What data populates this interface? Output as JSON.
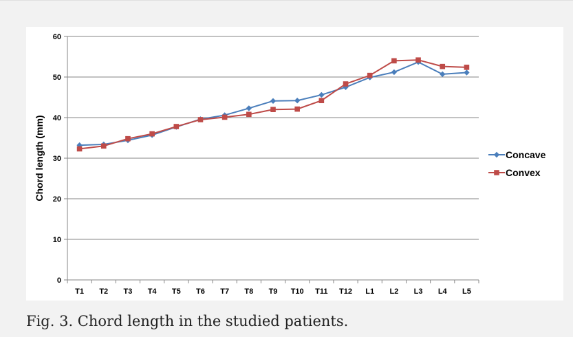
{
  "caption": "Fig. 3. Chord length in the studied patients.",
  "colors": {
    "concave": "#4a7ebb",
    "convex": "#be4b48",
    "grid": "#868686",
    "axis": "#868686",
    "text": "#000000"
  },
  "chart_data": {
    "type": "line",
    "title": "",
    "xlabel": "",
    "ylabel": "Chord length (mm)",
    "ylim": [
      0,
      60
    ],
    "yticks": [
      0,
      10,
      20,
      30,
      40,
      50,
      60
    ],
    "grid": true,
    "legend_position": "right",
    "categories": [
      "T1",
      "T2",
      "T3",
      "T4",
      "T5",
      "T6",
      "T7",
      "T8",
      "T9",
      "T10",
      "T11",
      "T12",
      "L1",
      "L2",
      "L3",
      "L4",
      "L5"
    ],
    "series": [
      {
        "name": "Concave",
        "marker": "diamond",
        "color": "#4a7ebb",
        "values": [
          33.2,
          33.4,
          34.4,
          35.7,
          37.7,
          39.6,
          40.6,
          42.3,
          44.1,
          44.2,
          45.6,
          47.5,
          49.9,
          51.2,
          53.7,
          50.7,
          51.1
        ]
      },
      {
        "name": "Convex",
        "marker": "square",
        "color": "#be4b48",
        "values": [
          32.3,
          33.0,
          34.8,
          36.0,
          37.8,
          39.5,
          40.1,
          40.8,
          42.0,
          42.1,
          44.2,
          48.3,
          50.4,
          54.0,
          54.2,
          52.6,
          52.4
        ]
      }
    ]
  }
}
